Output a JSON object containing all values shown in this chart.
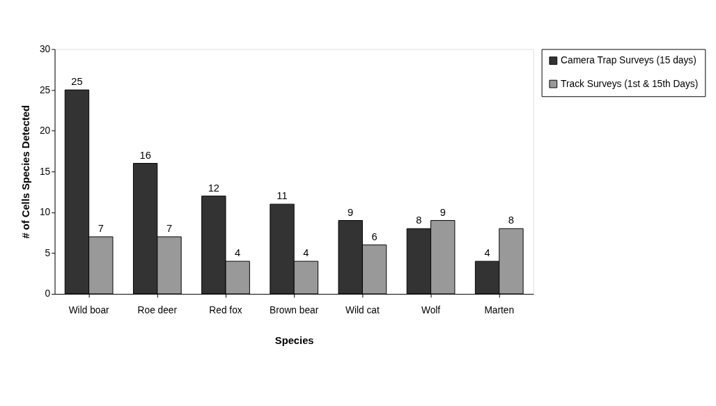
{
  "chart_data": {
    "type": "bar",
    "xlabel": "Species",
    "ylabel": "# of Cells Species Detected",
    "categories": [
      "Wild boar",
      "Roe deer",
      "Red fox",
      "Brown bear",
      "Wild cat",
      "Wolf",
      "Marten"
    ],
    "series": [
      {
        "name": "Camera Trap Surveys (15 days)",
        "color": "#333333",
        "values": [
          25,
          16,
          12,
          11,
          9,
          8,
          4
        ]
      },
      {
        "name": "Track Surveys (1st & 15th Days)",
        "color": "#999999",
        "values": [
          7,
          7,
          4,
          4,
          6,
          9,
          8
        ]
      }
    ],
    "ylim": [
      0,
      30
    ],
    "yticks": [
      0,
      5,
      10,
      15,
      20,
      25,
      30
    ],
    "grid": false,
    "legend": "right",
    "data_labels": true
  }
}
